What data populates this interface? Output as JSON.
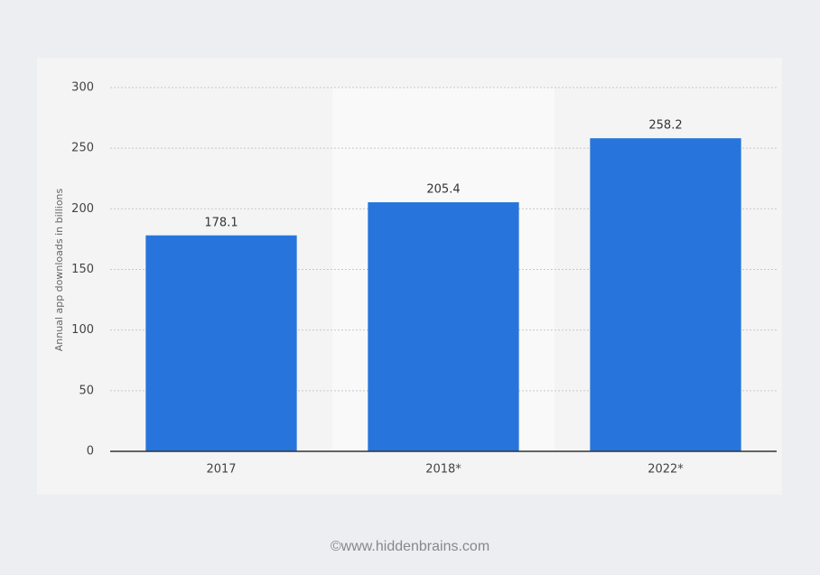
{
  "chart_data": {
    "type": "bar",
    "y_axis_label": "Annual app downloads in billions",
    "categories": [
      "2017",
      "2018*",
      "2022*"
    ],
    "values": [
      178.1,
      205.4,
      258.2
    ],
    "color": "#2775dc",
    "ylim": [
      0,
      300
    ],
    "yticks": [
      0,
      50,
      100,
      150,
      200,
      250,
      300
    ],
    "grid": true,
    "credit": "©www.hiddenbrains.com"
  }
}
